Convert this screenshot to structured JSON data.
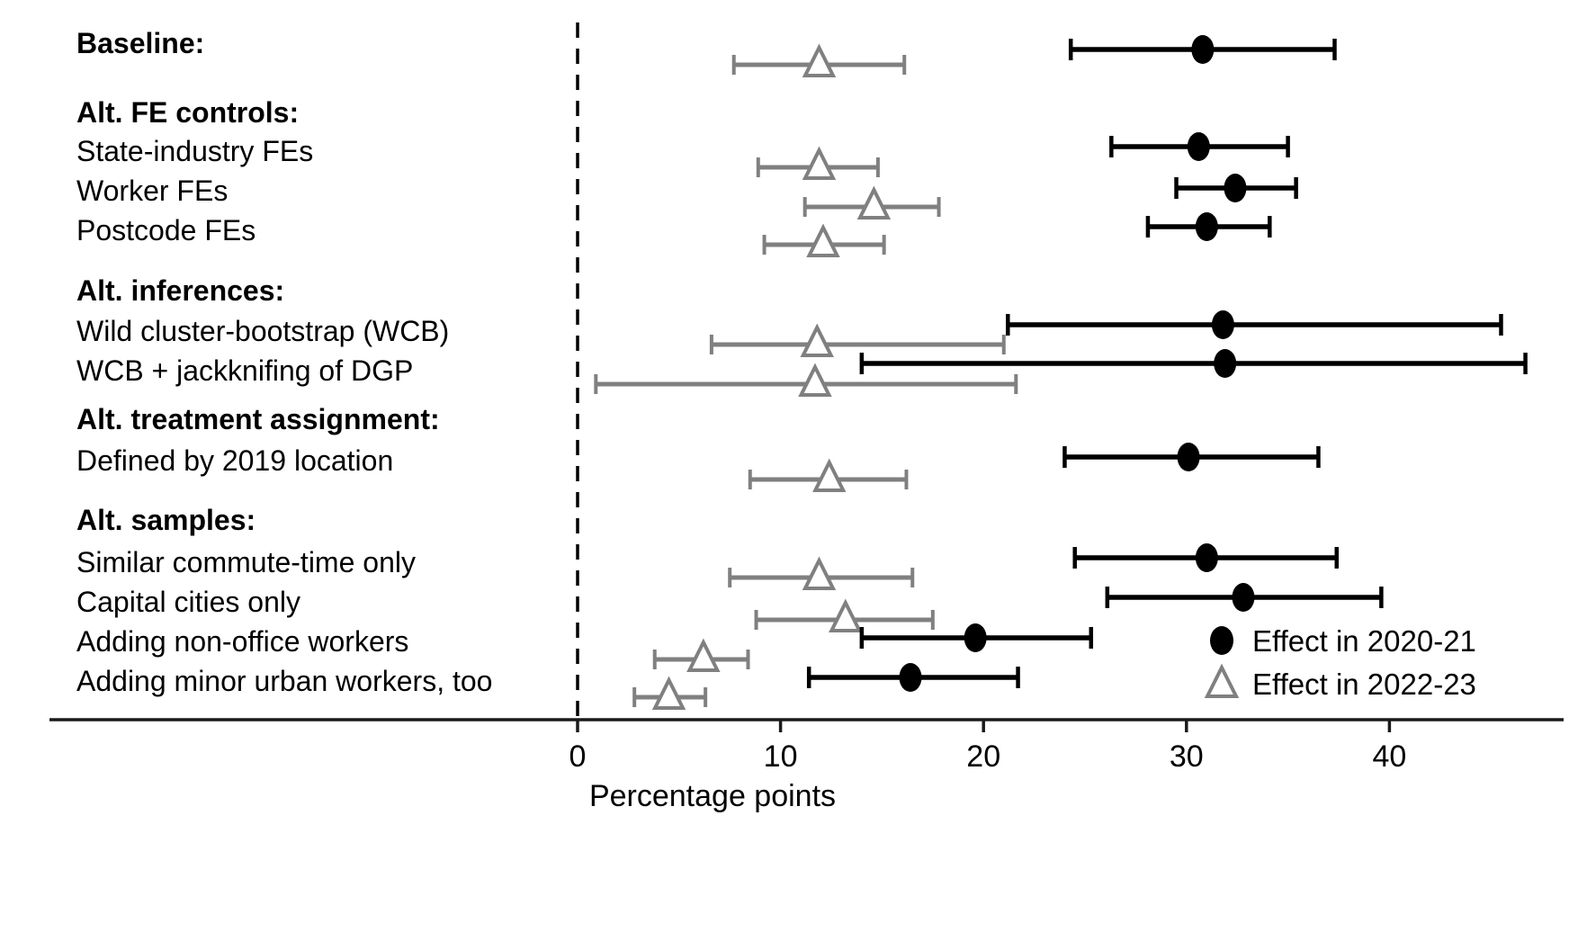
{
  "chart_data": {
    "type": "forest",
    "title": "",
    "xlabel": "Percentage points",
    "x_ticks": [
      0,
      10,
      20,
      30,
      40
    ],
    "xlim": [
      -26,
      48.5
    ],
    "zero_reference_line": 0,
    "grid": false,
    "legend_position": "inside-bottom-right",
    "series": [
      {
        "name": "Effect in 2020-21",
        "marker": "filled-circle",
        "color": "#000000"
      },
      {
        "name": "Effect in 2022-23",
        "marker": "open-triangle",
        "color": "#808080"
      }
    ],
    "rows": [
      {
        "label": "Baseline:",
        "bold": true,
        "effect_2020_21": {
          "est": 30.8,
          "lo": 24.3,
          "hi": 37.3
        },
        "effect_2022_23": {
          "est": 11.9,
          "lo": 7.7,
          "hi": 16.1
        }
      },
      {
        "label": "Alt. FE controls:",
        "bold": true,
        "effect_2020_21": null,
        "effect_2022_23": null
      },
      {
        "label": "State-industry FEs",
        "bold": false,
        "effect_2020_21": {
          "est": 30.6,
          "lo": 26.3,
          "hi": 35.0
        },
        "effect_2022_23": {
          "est": 11.9,
          "lo": 8.9,
          "hi": 14.8
        }
      },
      {
        "label": "Worker FEs",
        "bold": false,
        "effect_2020_21": {
          "est": 32.4,
          "lo": 29.5,
          "hi": 35.4
        },
        "effect_2022_23": {
          "est": 14.6,
          "lo": 11.2,
          "hi": 17.8
        }
      },
      {
        "label": "Postcode FEs",
        "bold": false,
        "effect_2020_21": {
          "est": 31.0,
          "lo": 28.1,
          "hi": 34.1
        },
        "effect_2022_23": {
          "est": 12.1,
          "lo": 9.2,
          "hi": 15.1
        }
      },
      {
        "label": "Alt. inferences:",
        "bold": true,
        "effect_2020_21": null,
        "effect_2022_23": null
      },
      {
        "label": "Wild cluster-bootstrap (WCB)",
        "bold": false,
        "effect_2020_21": {
          "est": 31.8,
          "lo": 21.2,
          "hi": 45.5
        },
        "effect_2022_23": {
          "est": 11.8,
          "lo": 6.6,
          "hi": 21.0
        }
      },
      {
        "label": "WCB + jackknifing of DGP",
        "bold": false,
        "effect_2020_21": {
          "est": 31.9,
          "lo": 14.0,
          "hi": 46.7
        },
        "effect_2022_23": {
          "est": 11.7,
          "lo": 0.9,
          "hi": 21.6
        }
      },
      {
        "label": "Alt. treatment assignment:",
        "bold": true,
        "effect_2020_21": null,
        "effect_2022_23": null
      },
      {
        "label": "Defined by 2019 location",
        "bold": false,
        "effect_2020_21": {
          "est": 30.1,
          "lo": 24.0,
          "hi": 36.5
        },
        "effect_2022_23": {
          "est": 12.4,
          "lo": 8.5,
          "hi": 16.2
        }
      },
      {
        "label": "Alt. samples:",
        "bold": true,
        "effect_2020_21": null,
        "effect_2022_23": null
      },
      {
        "label": "Similar commute-time only",
        "bold": false,
        "effect_2020_21": {
          "est": 31.0,
          "lo": 24.5,
          "hi": 37.4
        },
        "effect_2022_23": {
          "est": 11.9,
          "lo": 7.5,
          "hi": 16.5
        }
      },
      {
        "label": "Capital cities only",
        "bold": false,
        "effect_2020_21": {
          "est": 32.8,
          "lo": 26.1,
          "hi": 39.6
        },
        "effect_2022_23": {
          "est": 13.2,
          "lo": 8.8,
          "hi": 17.5
        }
      },
      {
        "label": "Adding non-office workers",
        "bold": false,
        "effect_2020_21": {
          "est": 19.6,
          "lo": 14.0,
          "hi": 25.3
        },
        "effect_2022_23": {
          "est": 6.2,
          "lo": 3.8,
          "hi": 8.4
        }
      },
      {
        "label": "Adding minor urban workers, too",
        "bold": false,
        "effect_2020_21": {
          "est": 16.4,
          "lo": 11.4,
          "hi": 21.7
        },
        "effect_2022_23": {
          "est": 4.5,
          "lo": 2.8,
          "hi": 6.3
        }
      }
    ]
  }
}
